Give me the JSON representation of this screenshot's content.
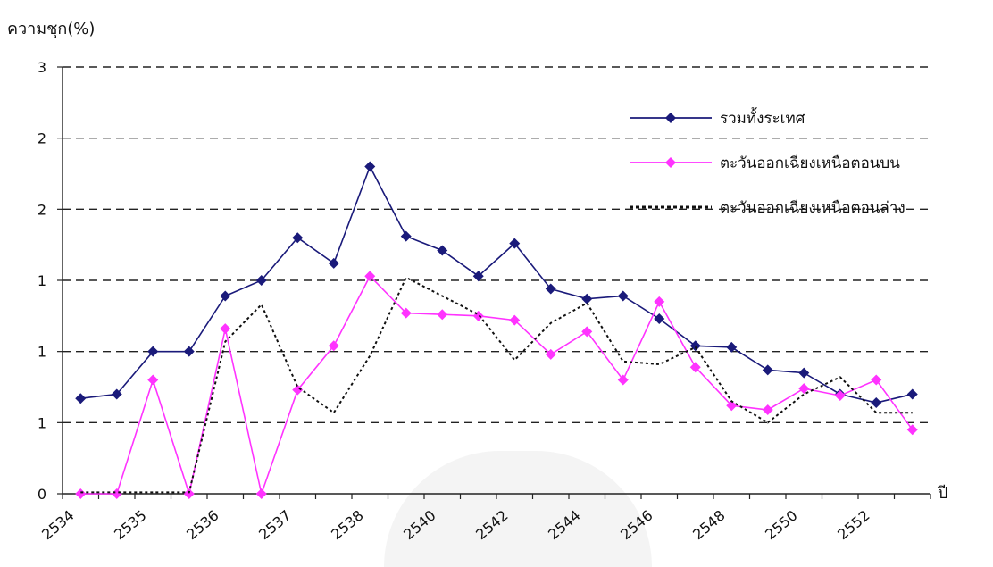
{
  "chart_data": {
    "type": "line",
    "ylabel": "ความชุก(%)",
    "xlabel": "ปี",
    "yticks": [
      "0",
      "1",
      "1",
      "1",
      "2",
      "2",
      "3"
    ],
    "ylim": [
      0,
      3
    ],
    "grid": "horizontal-dashed",
    "legend_position": "top-right",
    "x_tick_labels": [
      "2534",
      "2535",
      "2536",
      "2537",
      "2538",
      "2540",
      "2542",
      "2544",
      "2546",
      "2548",
      "2550",
      "2552"
    ],
    "series": [
      {
        "name": "รวมทั้งระเทศ",
        "color": "#1a1a7a",
        "marker": "diamond",
        "line_style": "solid",
        "values": [
          0.67,
          0.7,
          1.0,
          1.0,
          1.39,
          1.5,
          1.8,
          1.62,
          2.3,
          1.81,
          1.71,
          1.53,
          1.76,
          1.44,
          1.37,
          1.39,
          1.23,
          1.04,
          1.03,
          0.87,
          0.85,
          0.7,
          0.64,
          0.7
        ]
      },
      {
        "name": "ตะวันออกเฉียงเหนือตอนบน",
        "color": "#ff33ff",
        "marker": "diamond",
        "line_style": "solid",
        "values": [
          0.0,
          0.0,
          0.8,
          0.0,
          1.16,
          0.0,
          0.73,
          1.04,
          1.53,
          1.27,
          1.26,
          1.25,
          1.22,
          0.98,
          1.14,
          0.8,
          1.35,
          0.89,
          0.62,
          0.59,
          0.74,
          0.69,
          0.8,
          0.45
        ]
      },
      {
        "name": "ตะวันออกเฉียงเหนือตอนล่าง",
        "color": "#111111",
        "marker": "none",
        "line_style": "dotted",
        "values": [
          0.01,
          0.01,
          0.01,
          0.01,
          1.07,
          1.33,
          0.75,
          0.57,
          0.97,
          1.52,
          1.39,
          1.26,
          0.94,
          1.2,
          1.34,
          0.93,
          0.91,
          1.03,
          0.65,
          0.5,
          0.7,
          0.82,
          0.57,
          0.57
        ]
      }
    ]
  }
}
